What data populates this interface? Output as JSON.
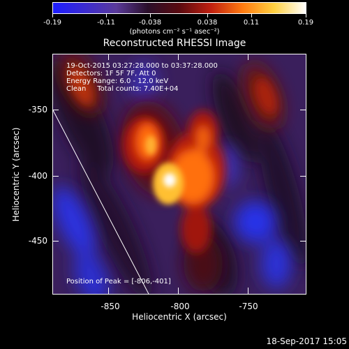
{
  "colorbar": {
    "colors": [
      "#1d1dff",
      "#3b2bd1",
      "#5a3a9a",
      "#2a0f2a",
      "#5a0a10",
      "#c02010",
      "#ff7a10",
      "#ffd040",
      "#ffffff"
    ],
    "tick_labels": [
      "-0.19",
      "-0.11",
      "-0.038",
      "0.038",
      "0.11",
      "0.19"
    ],
    "units": "(photons cm⁻² s⁻¹ asec⁻²)"
  },
  "title": "Reconstructed RHESSI Image",
  "info": {
    "time_range": "19-Oct-2015 03:27:28.000 to 03:37:28.000",
    "detectors": "Detectors: 1F 5F 7F, Att 0",
    "energy": "Energy Range: 6.0 - 12.0 keV",
    "clean": "Clean     Total counts: 7.40E+04",
    "peak": "Position of Peak = [-806,-401]"
  },
  "axes": {
    "xlabel": "Heliocentric X (arcsec)",
    "ylabel": "Heliocentric Y (arcsec)",
    "x_ticks": [
      "-850",
      "-800",
      "-750"
    ],
    "y_ticks": [
      "-350",
      "-400",
      "-450"
    ]
  },
  "footer": {
    "date": "18-Sep-2017 15:05"
  }
}
